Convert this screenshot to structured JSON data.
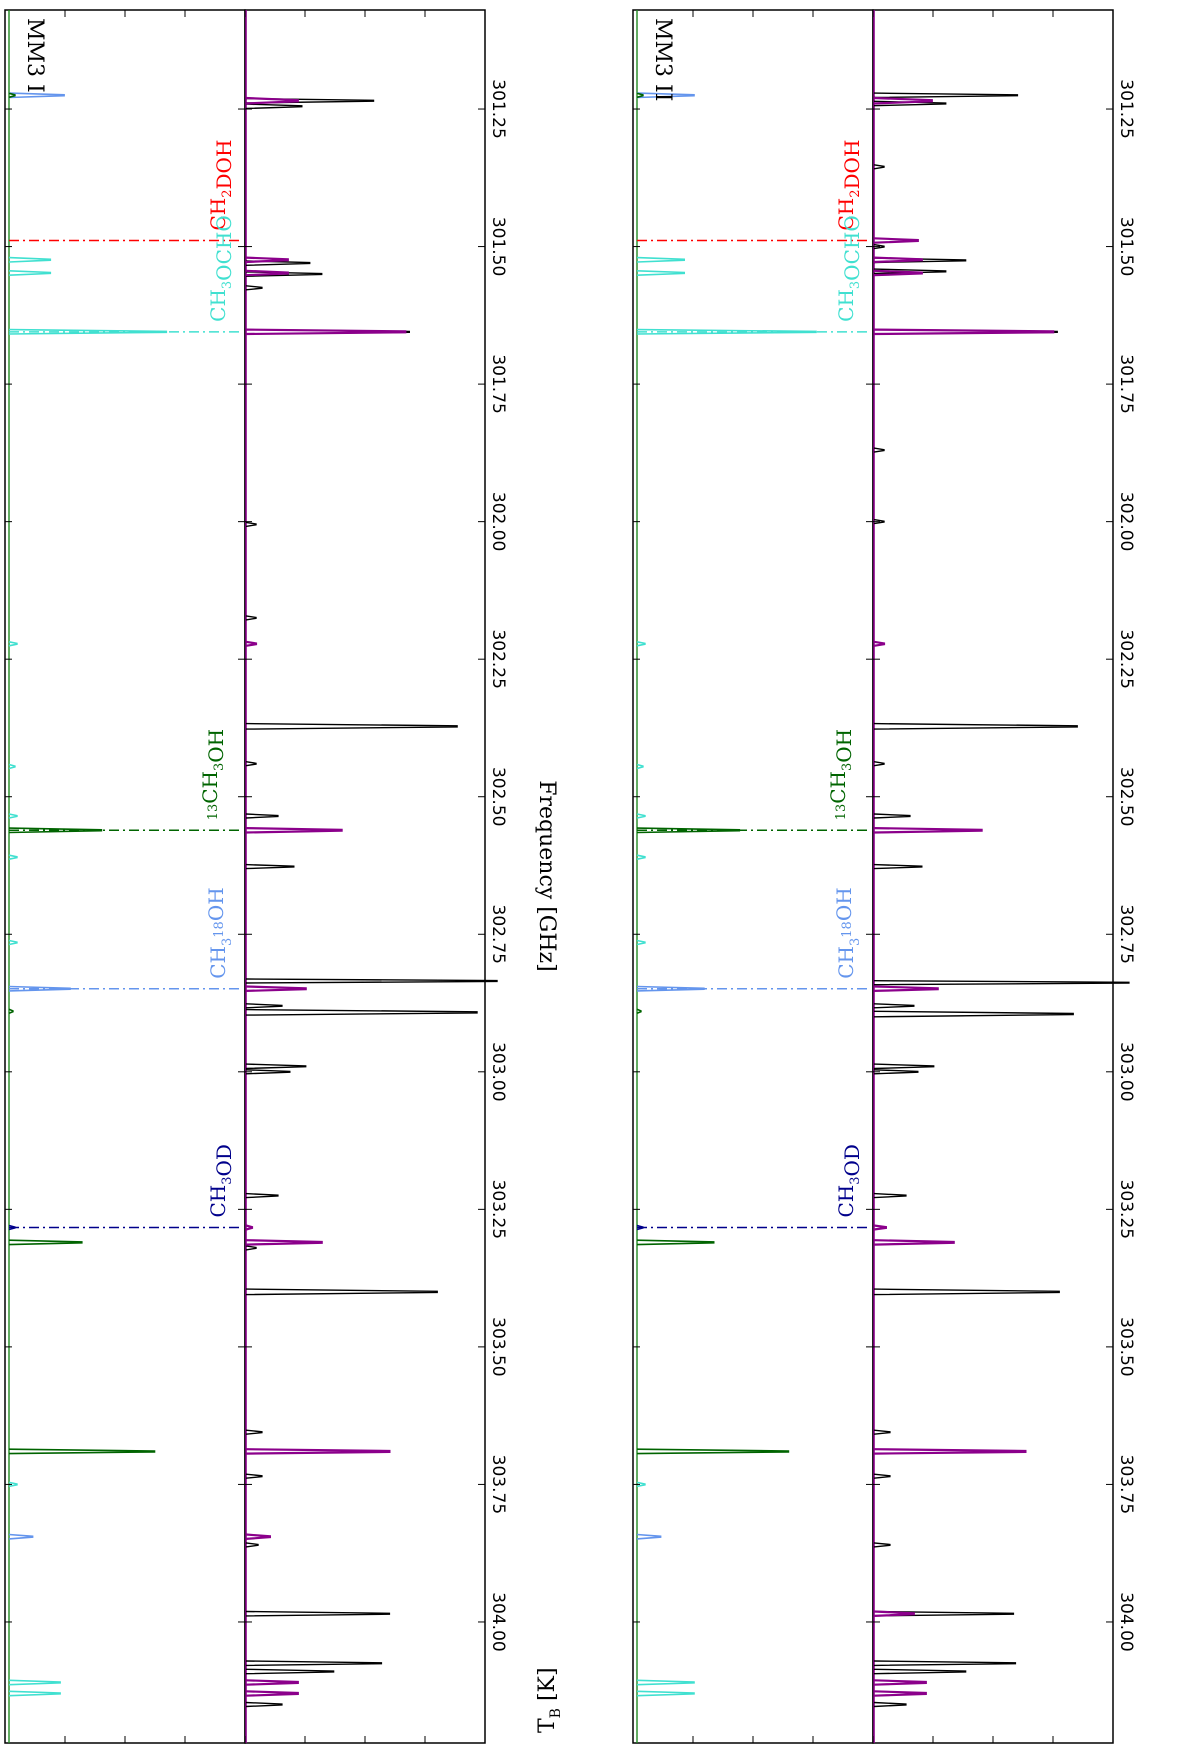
{
  "chart_data": {
    "type": "line",
    "xlabel": "Frequency [GHz]",
    "ylabel": "T",
    "ylabel_sub": "B",
    "ylabel_unit": "[K]",
    "xlim": [
      301.07,
      304.22
    ],
    "x_ticks": [
      "301.25",
      "301.50",
      "301.75",
      "302.00",
      "302.25",
      "302.50",
      "302.75",
      "303.00",
      "303.25",
      "303.50",
      "303.75",
      "304.00"
    ],
    "x_tick_values": [
      301.25,
      301.5,
      301.75,
      302.0,
      302.25,
      302.5,
      302.75,
      303.0,
      303.25,
      303.5,
      303.75,
      304.0
    ],
    "colors": {
      "observed": "#000000",
      "model": "#8b008b",
      "CH2DOH": "#ff0000",
      "CH3OCHO": "#40e0d0",
      "13CH3OH": "#006400",
      "CH3-18OH": "#6495ed",
      "CH3OD": "#00008b"
    },
    "markers": [
      {
        "key": "CH2DOH",
        "x": 301.489,
        "color": "#ff0000",
        "label": {
          "main": "CH",
          "s1": "2",
          "mid": "DOH",
          "s2": "",
          "end": "",
          "pre": ""
        }
      },
      {
        "key": "CH3OCHO",
        "x": 301.655,
        "color": "#40e0d0",
        "label": {
          "main": "CH",
          "s1": "3",
          "mid": "OCHO",
          "s2": "",
          "end": "",
          "pre": ""
        }
      },
      {
        "key": "13CH3OH",
        "x": 302.561,
        "color": "#006400",
        "label": {
          "main": "CH",
          "s1": "3",
          "mid": "OH",
          "s2": "",
          "end": "",
          "pre": "13"
        }
      },
      {
        "key": "CH3-18OH",
        "x": 302.849,
        "color": "#6495ed",
        "label": {
          "main": "CH",
          "s1": "3",
          "mid": "",
          "s2": "18",
          "end": "OH",
          "pre": ""
        }
      },
      {
        "key": "CH3OD",
        "x": 303.283,
        "color": "#00008b",
        "label": {
          "main": "CH",
          "s1": "3",
          "mid": "OD",
          "s2": "",
          "end": "",
          "pre": ""
        }
      }
    ],
    "panels": [
      {
        "name": "MM3 I",
        "upper": {
          "ylim": [
            0,
            60
          ],
          "yticks": [
            "0",
            "15",
            "30",
            "45",
            "60"
          ],
          "lines": [
            {
              "species": "CH3-18OH",
              "color": "#6495ed",
              "x": 301.225,
              "y": 14.0,
              "w": 0.004
            },
            {
              "species": "13CH3OH",
              "color": "#006400",
              "x": 301.225,
              "y": 1.5,
              "w": 0.003
            },
            {
              "species": "CH3OCHO",
              "color": "#40e0d0",
              "x": 301.524,
              "y": 10.5,
              "w": 0.004
            },
            {
              "species": "CH3OCHO",
              "color": "#40e0d0",
              "x": 301.548,
              "y": 10.5,
              "w": 0.004
            },
            {
              "species": "CH3OCHO",
              "color": "#40e0d0",
              "x": 301.655,
              "y": 40.0,
              "w": 0.004
            },
            {
              "species": "CH3OCHO",
              "color": "#40e0d0",
              "x": 302.222,
              "y": 2.0,
              "w": 0.003
            },
            {
              "species": "CH3OCHO",
              "color": "#40e0d0",
              "x": 302.445,
              "y": 1.5,
              "w": 0.003
            },
            {
              "species": "CH3OCHO",
              "color": "#40e0d0",
              "x": 302.535,
              "y": 2.0,
              "w": 0.003
            },
            {
              "species": "13CH3OH",
              "color": "#006400",
              "x": 302.561,
              "y": 23.5,
              "w": 0.004
            },
            {
              "species": "CH3OCHO",
              "color": "#40e0d0",
              "x": 302.61,
              "y": 2.0,
              "w": 0.003
            },
            {
              "species": "CH3OCHO",
              "color": "#40e0d0",
              "x": 302.765,
              "y": 2.0,
              "w": 0.003
            },
            {
              "species": "CH3-18OH",
              "color": "#6495ed",
              "x": 302.849,
              "y": 15.5,
              "w": 0.004
            },
            {
              "species": "13CH3OH",
              "color": "#006400",
              "x": 302.89,
              "y": 1.0,
              "w": 0.003
            },
            {
              "species": "CH3OD",
              "color": "#00008b",
              "x": 303.283,
              "y": 1.5,
              "w": 0.003
            },
            {
              "species": "13CH3OH",
              "color": "#006400",
              "x": 303.31,
              "y": 18.5,
              "w": 0.004
            },
            {
              "species": "CH3OCHO",
              "color": "#40e0d0",
              "x": 303.75,
              "y": 2.0,
              "w": 0.003
            },
            {
              "species": "13CH3OH",
              "color": "#006400",
              "x": 303.69,
              "y": 37.0,
              "w": 0.004
            },
            {
              "species": "CH3-18OH",
              "color": "#6495ed",
              "x": 303.845,
              "y": 6.0,
              "w": 0.004
            },
            {
              "species": "CH3OCHO",
              "color": "#40e0d0",
              "x": 304.11,
              "y": 13.0,
              "w": 0.004
            },
            {
              "species": "CH3OCHO",
              "color": "#40e0d0",
              "x": 304.13,
              "y": 13.0,
              "w": 0.004
            }
          ]
        },
        "lower": {
          "ylim": [
            0,
            60
          ],
          "yticks": [
            "0",
            "15",
            "30",
            "45",
            "60"
          ],
          "observed": [
            {
              "x": 301.235,
              "y": 32.0,
              "w": 0.004
            },
            {
              "x": 301.245,
              "y": 14.0,
              "w": 0.004
            },
            {
              "x": 301.53,
              "y": 16.0,
              "w": 0.004
            },
            {
              "x": 301.55,
              "y": 19.0,
              "w": 0.004
            },
            {
              "x": 301.575,
              "y": 4.0,
              "w": 0.003
            },
            {
              "x": 301.655,
              "y": 41.0,
              "w": 0.004
            },
            {
              "x": 302.005,
              "y": 2.5,
              "w": 0.003
            },
            {
              "x": 302.175,
              "y": 2.5,
              "w": 0.003
            },
            {
              "x": 302.372,
              "y": 53.0,
              "w": 0.005
            },
            {
              "x": 302.44,
              "y": 2.5,
              "w": 0.003
            },
            {
              "x": 302.535,
              "y": 8.0,
              "w": 0.003
            },
            {
              "x": 302.627,
              "y": 12.0,
              "w": 0.003
            },
            {
              "x": 302.835,
              "y": 63.0,
              "w": 0.003
            },
            {
              "x": 302.892,
              "y": 58.0,
              "w": 0.005
            },
            {
              "x": 302.88,
              "y": 9.0,
              "w": 0.003
            },
            {
              "x": 302.99,
              "y": 15.0,
              "w": 0.004
            },
            {
              "x": 303.0,
              "y": 11.0,
              "w": 0.003
            },
            {
              "x": 303.225,
              "y": 8.0,
              "w": 0.003
            },
            {
              "x": 303.32,
              "y": 2.5,
              "w": 0.003
            },
            {
              "x": 303.4,
              "y": 48.0,
              "w": 0.005
            },
            {
              "x": 303.655,
              "y": 4.0,
              "w": 0.003
            },
            {
              "x": 303.735,
              "y": 4.0,
              "w": 0.003
            },
            {
              "x": 303.86,
              "y": 3.0,
              "w": 0.003
            },
            {
              "x": 303.985,
              "y": 36.0,
              "w": 0.004
            },
            {
              "x": 304.075,
              "y": 34.0,
              "w": 0.004
            },
            {
              "x": 304.09,
              "y": 22.0,
              "w": 0.004
            },
            {
              "x": 304.15,
              "y": 9.0,
              "w": 0.003
            }
          ],
          "model": [
            {
              "x": 301.235,
              "y": 13.0,
              "w": 0.005
            },
            {
              "x": 301.524,
              "y": 10.5,
              "w": 0.004
            },
            {
              "x": 301.548,
              "y": 10.5,
              "w": 0.004
            },
            {
              "x": 301.655,
              "y": 40.0,
              "w": 0.004
            },
            {
              "x": 302.222,
              "y": 2.5,
              "w": 0.003
            },
            {
              "x": 302.561,
              "y": 24.0,
              "w": 0.004
            },
            {
              "x": 302.849,
              "y": 15.0,
              "w": 0.004
            },
            {
              "x": 303.283,
              "y": 1.5,
              "w": 0.003
            },
            {
              "x": 303.31,
              "y": 19.0,
              "w": 0.004
            },
            {
              "x": 303.69,
              "y": 36.0,
              "w": 0.004
            },
            {
              "x": 303.845,
              "y": 6.0,
              "w": 0.004
            },
            {
              "x": 304.11,
              "y": 13.0,
              "w": 0.004
            },
            {
              "x": 304.13,
              "y": 13.0,
              "w": 0.004
            }
          ]
        }
      },
      {
        "name": "MM3 II",
        "upper": {
          "ylim": [
            0,
            60
          ],
          "yticks": [
            "0",
            "15",
            "30",
            "45"
          ],
          "lines": [
            {
              "species": "CH3-18OH",
              "color": "#6495ed",
              "x": 301.225,
              "y": 14.5,
              "w": 0.004
            },
            {
              "species": "13CH3OH",
              "color": "#006400",
              "x": 301.225,
              "y": 1.5,
              "w": 0.003
            },
            {
              "species": "CH3OCHO",
              "color": "#40e0d0",
              "x": 301.524,
              "y": 12.0,
              "w": 0.004
            },
            {
              "species": "CH3OCHO",
              "color": "#40e0d0",
              "x": 301.548,
              "y": 12.0,
              "w": 0.004
            },
            {
              "species": "CH3OCHO",
              "color": "#40e0d0",
              "x": 301.655,
              "y": 45.5,
              "w": 0.004
            },
            {
              "species": "CH3OCHO",
              "color": "#40e0d0",
              "x": 302.222,
              "y": 2.0,
              "w": 0.003
            },
            {
              "species": "CH3OCHO",
              "color": "#40e0d0",
              "x": 302.445,
              "y": 1.5,
              "w": 0.003
            },
            {
              "species": "CH3OCHO",
              "color": "#40e0d0",
              "x": 302.535,
              "y": 2.0,
              "w": 0.003
            },
            {
              "species": "13CH3OH",
              "color": "#006400",
              "x": 302.561,
              "y": 26.0,
              "w": 0.004
            },
            {
              "species": "CH3OCHO",
              "color": "#40e0d0",
              "x": 302.61,
              "y": 2.0,
              "w": 0.003
            },
            {
              "species": "CH3OCHO",
              "color": "#40e0d0",
              "x": 302.765,
              "y": 2.0,
              "w": 0.003
            },
            {
              "species": "CH3-18OH",
              "color": "#6495ed",
              "x": 302.849,
              "y": 17.0,
              "w": 0.004
            },
            {
              "species": "13CH3OH",
              "color": "#006400",
              "x": 302.89,
              "y": 1.0,
              "w": 0.003
            },
            {
              "species": "CH3OD",
              "color": "#00008b",
              "x": 303.283,
              "y": 1.5,
              "w": 0.003
            },
            {
              "species": "13CH3OH",
              "color": "#006400",
              "x": 303.31,
              "y": 19.5,
              "w": 0.004
            },
            {
              "species": "CH3OCHO",
              "color": "#40e0d0",
              "x": 303.75,
              "y": 2.0,
              "w": 0.003
            },
            {
              "species": "13CH3OH",
              "color": "#006400",
              "x": 303.69,
              "y": 38.5,
              "w": 0.004
            },
            {
              "species": "CH3-18OH",
              "color": "#6495ed",
              "x": 303.845,
              "y": 6.0,
              "w": 0.004
            },
            {
              "species": "CH3OCHO",
              "color": "#40e0d0",
              "x": 304.11,
              "y": 14.5,
              "w": 0.004
            },
            {
              "species": "CH3OCHO",
              "color": "#40e0d0",
              "x": 304.13,
              "y": 14.5,
              "w": 0.004
            }
          ]
        },
        "lower": {
          "ylim": [
            0,
            60
          ],
          "yticks": [
            "0",
            "15",
            "30",
            "45"
          ],
          "observed": [
            {
              "x": 301.225,
              "y": 36.0,
              "w": 0.004
            },
            {
              "x": 301.24,
              "y": 18.0,
              "w": 0.004
            },
            {
              "x": 301.355,
              "y": 2.5,
              "w": 0.003
            },
            {
              "x": 301.5,
              "y": 2.5,
              "w": 0.003
            },
            {
              "x": 301.525,
              "y": 23.0,
              "w": 0.004
            },
            {
              "x": 301.545,
              "y": 18.0,
              "w": 0.004
            },
            {
              "x": 301.655,
              "y": 46.0,
              "w": 0.004
            },
            {
              "x": 301.87,
              "y": 2.5,
              "w": 0.003
            },
            {
              "x": 302.0,
              "y": 2.5,
              "w": 0.003
            },
            {
              "x": 302.372,
              "y": 51.0,
              "w": 0.005
            },
            {
              "x": 302.44,
              "y": 2.5,
              "w": 0.003
            },
            {
              "x": 302.535,
              "y": 9.0,
              "w": 0.003
            },
            {
              "x": 302.627,
              "y": 12.0,
              "w": 0.003
            },
            {
              "x": 302.838,
              "y": 64.0,
              "w": 0.003
            },
            {
              "x": 302.895,
              "y": 50.0,
              "w": 0.005
            },
            {
              "x": 302.88,
              "y": 10.0,
              "w": 0.003
            },
            {
              "x": 302.99,
              "y": 15.0,
              "w": 0.004
            },
            {
              "x": 303.0,
              "y": 11.0,
              "w": 0.003
            },
            {
              "x": 303.225,
              "y": 8.0,
              "w": 0.003
            },
            {
              "x": 303.4,
              "y": 46.5,
              "w": 0.005
            },
            {
              "x": 303.655,
              "y": 4.0,
              "w": 0.003
            },
            {
              "x": 303.735,
              "y": 4.0,
              "w": 0.003
            },
            {
              "x": 303.86,
              "y": 4.0,
              "w": 0.003
            },
            {
              "x": 303.985,
              "y": 35.0,
              "w": 0.004
            },
            {
              "x": 304.075,
              "y": 35.5,
              "w": 0.004
            },
            {
              "x": 304.09,
              "y": 23.0,
              "w": 0.004
            },
            {
              "x": 304.15,
              "y": 8.0,
              "w": 0.003
            }
          ],
          "model": [
            {
              "x": 301.235,
              "y": 14.5,
              "w": 0.005
            },
            {
              "x": 301.489,
              "y": 11.0,
              "w": 0.004
            },
            {
              "x": 301.524,
              "y": 12.0,
              "w": 0.004
            },
            {
              "x": 301.548,
              "y": 12.0,
              "w": 0.004
            },
            {
              "x": 301.655,
              "y": 45.0,
              "w": 0.004
            },
            {
              "x": 302.222,
              "y": 2.5,
              "w": 0.003
            },
            {
              "x": 302.561,
              "y": 27.0,
              "w": 0.004
            },
            {
              "x": 302.849,
              "y": 16.0,
              "w": 0.004
            },
            {
              "x": 303.283,
              "y": 3.0,
              "w": 0.003
            },
            {
              "x": 303.31,
              "y": 20.0,
              "w": 0.004
            },
            {
              "x": 303.69,
              "y": 38.0,
              "w": 0.004
            },
            {
              "x": 303.985,
              "y": 10.0,
              "w": 0.004
            },
            {
              "x": 304.11,
              "y": 13.0,
              "w": 0.004
            },
            {
              "x": 304.13,
              "y": 13.0,
              "w": 0.004
            }
          ]
        }
      }
    ]
  }
}
